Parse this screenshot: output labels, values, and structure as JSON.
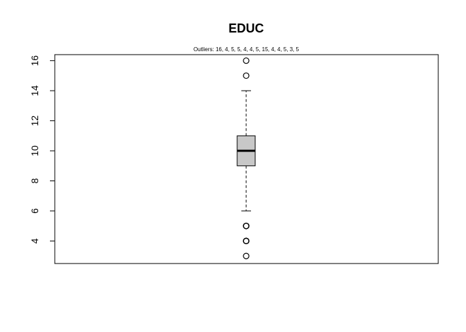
{
  "chart_data": {
    "type": "boxplot",
    "title": "EDUC",
    "subtitle": "Outliers:  16, 4, 5, 5, 4, 4, 5, 15, 4, 4, 5, 3, 5",
    "xlabel": "",
    "ylabel": "",
    "ylim": [
      2.5,
      16.4
    ],
    "yticks": [
      4,
      6,
      8,
      10,
      12,
      14,
      16
    ],
    "box": {
      "whisker_low": 6,
      "q1": 9,
      "median": 10,
      "q3": 11,
      "whisker_high": 14
    },
    "outliers": [
      16,
      4,
      5,
      5,
      4,
      4,
      5,
      15,
      4,
      4,
      5,
      3,
      5
    ],
    "grid": false,
    "colors": {
      "box_fill": "#c8c8c8",
      "stroke": "#000000"
    }
  }
}
